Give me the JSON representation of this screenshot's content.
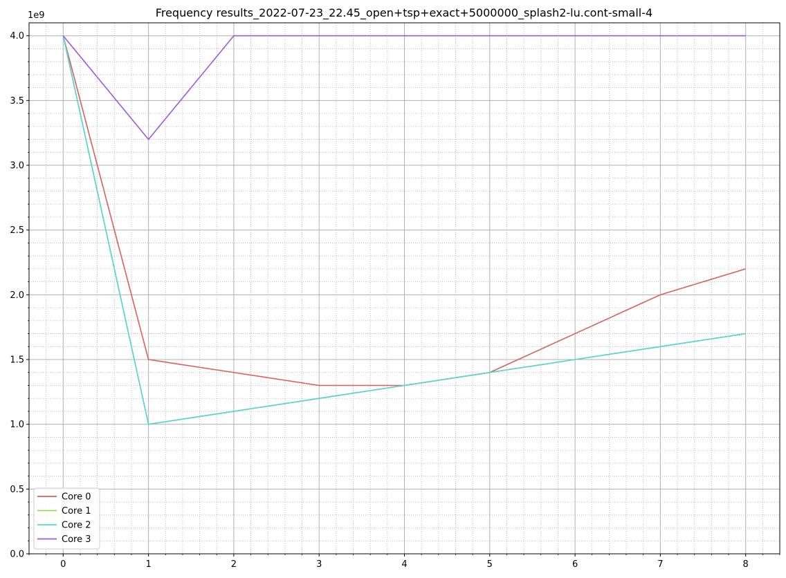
{
  "chart_data": {
    "type": "line",
    "title": "Frequency results_2022-07-23_22.45_open+tsp+exact+5000000_splash2-lu.cont-small-4",
    "xlabel": "",
    "ylabel": "",
    "y_offset_label": "1e9",
    "x": [
      0,
      1,
      2,
      3,
      4,
      5,
      6,
      7,
      8
    ],
    "xlim": [
      -0.4,
      8.4
    ],
    "ylim": [
      0,
      4.1
    ],
    "x_ticks": [
      0,
      1,
      2,
      3,
      4,
      5,
      6,
      7,
      8
    ],
    "x_tick_labels": [
      "0",
      "1",
      "2",
      "3",
      "4",
      "5",
      "6",
      "7",
      "8"
    ],
    "y_ticks": [
      0.0,
      0.5,
      1.0,
      1.5,
      2.0,
      2.5,
      3.0,
      3.5,
      4.0
    ],
    "y_tick_labels": [
      "0.0",
      "0.5",
      "1.0",
      "1.5",
      "2.0",
      "2.5",
      "3.0",
      "3.5",
      "4.0"
    ],
    "grid": "major solid, minor dotted",
    "legend_position": "lower-left",
    "series": [
      {
        "name": "Core 0",
        "color": "#db5f57",
        "values": [
          4.0,
          1.5,
          1.4,
          1.3,
          1.3,
          1.4,
          1.7,
          2.0,
          2.2
        ]
      },
      {
        "name": "Core 1",
        "color": "#91db57",
        "values": [
          4.0,
          1.0,
          1.1,
          1.2,
          1.3,
          1.4,
          1.5,
          1.6,
          1.7
        ]
      },
      {
        "name": "Core 2",
        "color": "#57d3db",
        "values": [
          4.0,
          1.0,
          1.1,
          1.2,
          1.3,
          1.4,
          1.5,
          1.6,
          1.7
        ]
      },
      {
        "name": "Core 3",
        "color": "#a157db",
        "values": [
          4.0,
          3.2,
          4.0,
          4.0,
          4.0,
          4.0,
          4.0,
          4.0,
          4.0
        ]
      }
    ]
  }
}
